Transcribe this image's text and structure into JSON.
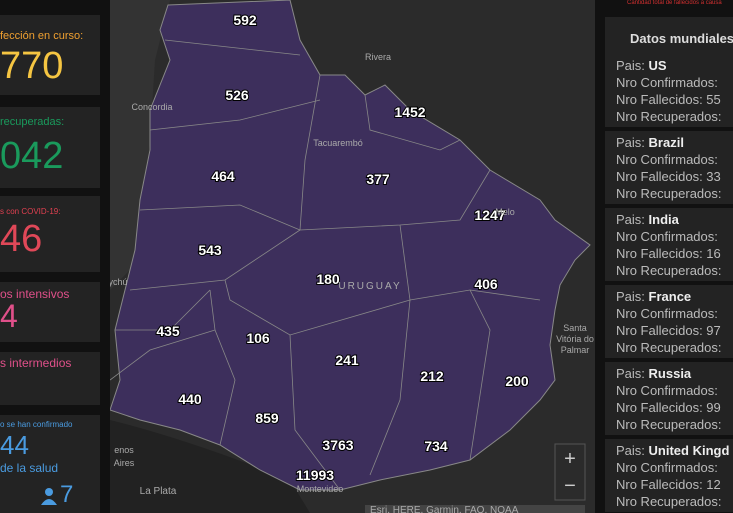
{
  "left": {
    "cards": [
      {
        "label": "fección en curso:",
        "value": "770"
      },
      {
        "label": "recuperadas:",
        "value": "042"
      },
      {
        "label": "s con COVID-19:",
        "value": "46"
      },
      {
        "label": "os intensivos",
        "value": "4"
      },
      {
        "label": "s intermedios"
      },
      {
        "label": "o se han confirmado",
        "value": "44",
        "sub": "de la salud",
        "sub_value": "7"
      }
    ]
  },
  "map": {
    "departments": [
      "592",
      "526",
      "1452",
      "464",
      "377",
      "1247",
      "543",
      "180",
      "406",
      "435",
      "106",
      "241",
      "212",
      "200",
      "440",
      "859",
      "3763",
      "734",
      "11993"
    ],
    "places": [
      "Rivera",
      "Concordia",
      "Tacuarembó",
      "Melo",
      "URUGUAY",
      "Santa",
      "Vitória do",
      "Palmar",
      "ychú",
      "enos",
      "Aires",
      "La Plata",
      "Montevideo"
    ],
    "attribution": "Esri, HERE, Garmin, FAO, NOAA"
  },
  "world": {
    "note": "Cantidad total de fallecidos a causa",
    "title": "Datos mundiales",
    "countries": [
      {
        "pais": "Pais:",
        "name": "US",
        "confirmed": "Nro Confirmados:",
        "deaths": "Nro Fallecidos: 55",
        "recovered": "Nro Recuperados:"
      },
      {
        "pais": "Pais:",
        "name": "Brazil",
        "confirmed": "Nro Confirmados:",
        "deaths": "Nro Fallecidos: 33",
        "recovered": "Nro Recuperados:"
      },
      {
        "pais": "Pais:",
        "name": "India",
        "confirmed": "Nro Confirmados:",
        "deaths": "Nro Fallecidos: 16",
        "recovered": "Nro Recuperados:"
      },
      {
        "pais": "Pais:",
        "name": "France",
        "confirmed": "Nro Confirmados:",
        "deaths": "Nro Fallecidos: 97",
        "recovered": "Nro Recuperados:"
      },
      {
        "pais": "Pais:",
        "name": "Russia",
        "confirmed": "Nro Confirmados:",
        "deaths": "Nro Fallecidos: 99",
        "recovered": "Nro Recuperados:"
      },
      {
        "pais": "Pais:",
        "name": "United Kingd",
        "confirmed": "Nro Confirmados:",
        "deaths": "Nro Fallecidos: 12",
        "recovered": "Nro Recuperados:"
      }
    ]
  }
}
